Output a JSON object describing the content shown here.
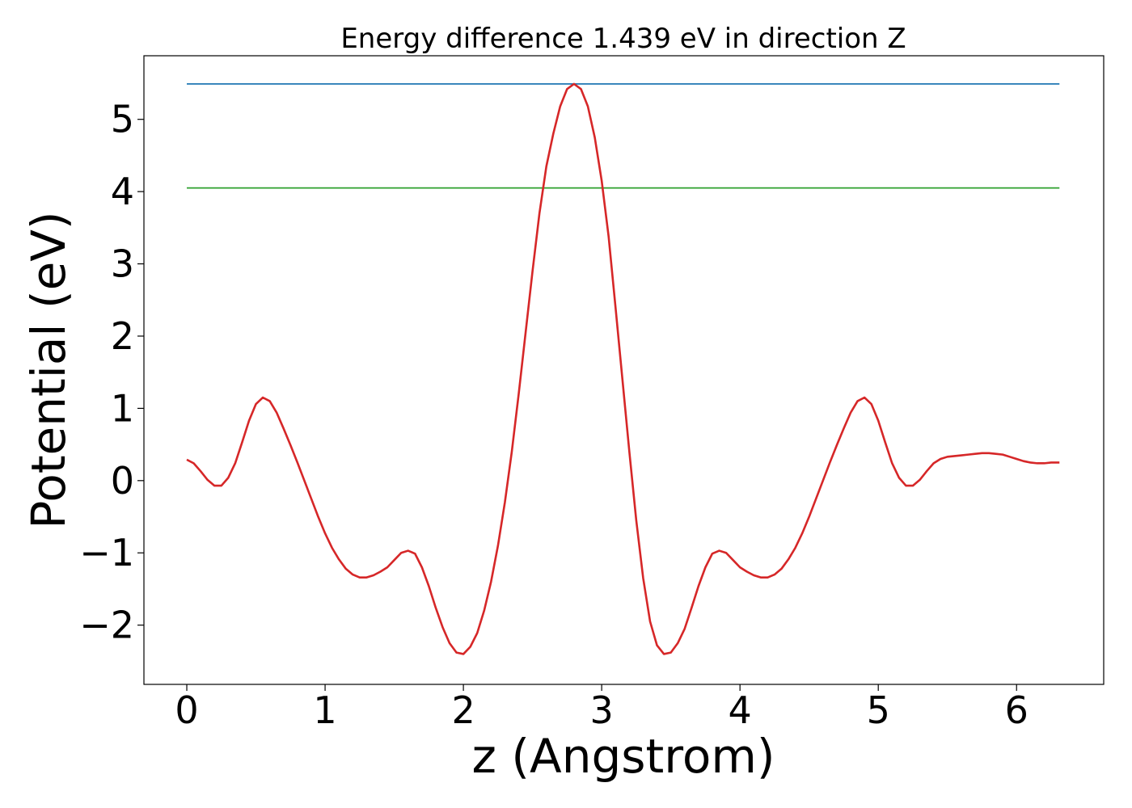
{
  "chart_data": {
    "type": "line",
    "title": "Energy difference 1.439 eV in direction Z",
    "xlabel": "z (Angstrom)",
    "ylabel": "Potential (eV)",
    "xlim": [
      -0.31,
      6.63
    ],
    "ylim": [
      -2.82,
      5.88
    ],
    "xticks": [
      0,
      1,
      2,
      3,
      4,
      5,
      6
    ],
    "xtick_labels": [
      "0",
      "1",
      "2",
      "3",
      "4",
      "5",
      "6"
    ],
    "yticks": [
      -2,
      -1,
      0,
      1,
      2,
      3,
      4,
      5
    ],
    "ytick_labels": [
      "−2",
      "−1",
      "0",
      "1",
      "2",
      "3",
      "4",
      "5"
    ],
    "grid": false,
    "series": [
      {
        "color": "#1f77b4",
        "x": [
          0,
          6.31
        ],
        "y": [
          5.49,
          5.49
        ]
      },
      {
        "color": "#2ca02c",
        "x": [
          0,
          6.31
        ],
        "y": [
          4.05,
          4.05
        ]
      },
      {
        "color": "#d62728",
        "x": [
          0.0,
          0.05,
          0.1,
          0.15,
          0.2,
          0.25,
          0.3,
          0.35,
          0.4,
          0.45,
          0.5,
          0.55,
          0.6,
          0.65,
          0.7,
          0.75,
          0.8,
          0.85,
          0.9,
          0.95,
          1.0,
          1.05,
          1.1,
          1.15,
          1.2,
          1.25,
          1.3,
          1.35,
          1.4,
          1.45,
          1.5,
          1.55,
          1.6,
          1.65,
          1.7,
          1.75,
          1.8,
          1.85,
          1.9,
          1.95,
          2.0,
          2.05,
          2.1,
          2.15,
          2.2,
          2.25,
          2.3,
          2.35,
          2.4,
          2.45,
          2.5,
          2.55,
          2.6,
          2.65,
          2.7,
          2.75,
          2.8,
          2.85,
          2.9,
          2.95,
          3.0,
          3.05,
          3.1,
          3.15,
          3.2,
          3.25,
          3.3,
          3.35,
          3.4,
          3.45,
          3.5,
          3.55,
          3.6,
          3.65,
          3.7,
          3.75,
          3.8,
          3.85,
          3.9,
          3.95,
          4.0,
          4.05,
          4.1,
          4.15,
          4.2,
          4.25,
          4.3,
          4.35,
          4.4,
          4.45,
          4.5,
          4.55,
          4.6,
          4.65,
          4.7,
          4.75,
          4.8,
          4.85,
          4.9,
          4.95,
          5.0,
          5.05,
          5.1,
          5.15,
          5.2,
          5.25,
          5.3,
          5.35,
          5.4,
          5.45,
          5.5,
          5.55,
          5.6,
          5.65,
          5.7,
          5.75,
          5.8,
          5.85,
          5.9,
          5.95,
          6.0,
          6.05,
          6.1,
          6.15,
          6.2,
          6.25,
          6.31
        ],
        "y": [
          0.29,
          0.24,
          0.13,
          0.01,
          -0.07,
          -0.07,
          0.04,
          0.24,
          0.53,
          0.83,
          1.06,
          1.15,
          1.1,
          0.94,
          0.72,
          0.49,
          0.25,
          0.0,
          -0.25,
          -0.5,
          -0.73,
          -0.93,
          -1.09,
          -1.22,
          -1.3,
          -1.34,
          -1.34,
          -1.31,
          -1.26,
          -1.2,
          -1.1,
          -1.0,
          -0.97,
          -1.01,
          -1.2,
          -1.46,
          -1.76,
          -2.03,
          -2.25,
          -2.38,
          -2.4,
          -2.3,
          -2.11,
          -1.8,
          -1.4,
          -0.9,
          -0.3,
          0.4,
          1.2,
          2.05,
          2.9,
          3.7,
          4.35,
          4.8,
          5.18,
          5.42,
          5.49,
          5.42,
          5.18,
          4.75,
          4.15,
          3.38,
          2.4,
          1.4,
          0.4,
          -0.55,
          -1.35,
          -1.95,
          -2.28,
          -2.4,
          -2.38,
          -2.25,
          -2.05,
          -1.76,
          -1.46,
          -1.2,
          -1.01,
          -0.97,
          -1.0,
          -1.1,
          -1.2,
          -1.26,
          -1.31,
          -1.34,
          -1.34,
          -1.3,
          -1.22,
          -1.09,
          -0.93,
          -0.73,
          -0.5,
          -0.25,
          0.0,
          0.25,
          0.49,
          0.72,
          0.94,
          1.1,
          1.15,
          1.06,
          0.83,
          0.53,
          0.24,
          0.04,
          -0.07,
          -0.07,
          0.01,
          0.13,
          0.24,
          0.3,
          0.33,
          0.34,
          0.35,
          0.36,
          0.37,
          0.38,
          0.38,
          0.37,
          0.36,
          0.33,
          0.3,
          0.27,
          0.25,
          0.24,
          0.24,
          0.25,
          0.25
        ]
      }
    ]
  }
}
